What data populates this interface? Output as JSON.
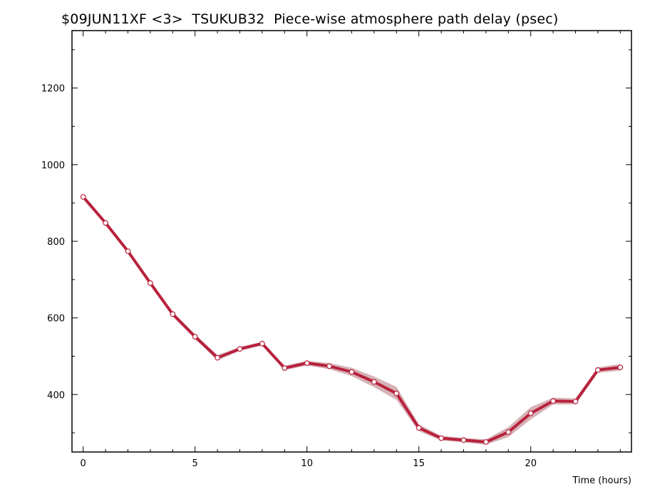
{
  "chart_data": {
    "type": "line",
    "title": "$09JUN11XF <3>  TSUKUB32  Piece-wise atmosphere path delay (psec)",
    "xlabel": "Time (hours)",
    "ylabel": "",
    "xlim": [
      -0.5,
      24.5
    ],
    "ylim": [
      250,
      1350
    ],
    "x_ticks": [
      0,
      5,
      10,
      15,
      20
    ],
    "y_ticks": [
      400,
      600,
      800,
      1000,
      1200
    ],
    "grid": false,
    "colors": {
      "line": "#b8213c",
      "band": "#d6b2b6",
      "marker_fill": "#ffffff",
      "axis": "#000000"
    },
    "series": [
      {
        "x": [
          0,
          1,
          2,
          3,
          4,
          5,
          6,
          7,
          8,
          9,
          10,
          11,
          12,
          13,
          14,
          15,
          16,
          17,
          18,
          19,
          20,
          21,
          22,
          23,
          24
        ],
        "values": [
          916,
          848,
          774,
          691,
          610,
          551,
          496,
          519,
          533,
          469,
          482,
          474,
          459,
          433,
          403,
          313,
          286,
          281,
          276,
          302,
          351,
          383,
          382,
          464,
          471
        ],
        "band_upper": [
          922,
          853,
          779,
          696,
          616,
          557,
          503,
          524,
          538,
          475,
          488,
          482,
          470,
          447,
          420,
          322,
          292,
          287,
          283,
          315,
          367,
          392,
          390,
          471,
          480
        ],
        "band_lower": [
          910,
          843,
          769,
          686,
          604,
          545,
          489,
          514,
          528,
          463,
          476,
          466,
          448,
          419,
          386,
          304,
          280,
          275,
          269,
          289,
          335,
          374,
          374,
          457,
          462
        ]
      }
    ]
  }
}
